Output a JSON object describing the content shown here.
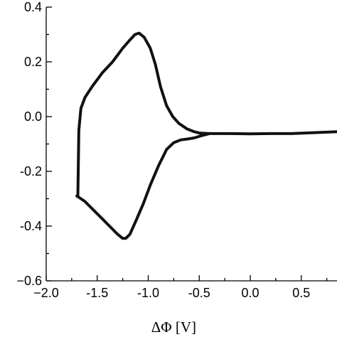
{
  "chart_data": {
    "type": "line",
    "title": "",
    "xlabel": "ΔΦ [V]",
    "ylabel": "",
    "xlim": [
      -2.0,
      0.85
    ],
    "ylim": [
      -0.6,
      0.4
    ],
    "x_ticks": [
      -2.0,
      -1.5,
      -1.0,
      -0.5,
      0.0,
      0.5
    ],
    "x_tick_labels": [
      "−2.0",
      "-1.5",
      "-1.0",
      "-0.5",
      "0.0",
      "0.5"
    ],
    "y_ticks": [
      0.4,
      0.2,
      0.0,
      -0.2,
      -0.4,
      -0.6
    ],
    "y_tick_labels": [
      "0.4",
      "0.2",
      "0.0",
      "-0.2",
      "-0.4",
      "−0.6"
    ],
    "grid": false,
    "series": [
      {
        "color": "#111111",
        "x": [
          -1.69,
          -1.68,
          -1.66,
          -1.62,
          -1.55,
          -1.45,
          -1.35,
          -1.25,
          -1.18,
          -1.13,
          -1.09,
          -1.04,
          -0.98,
          -0.93,
          -0.88,
          -0.82,
          -0.76,
          -0.7,
          -0.62,
          -0.55,
          -0.5,
          -0.4,
          -0.2,
          0.0,
          0.2,
          0.4,
          0.6,
          0.85,
          0.6,
          0.4,
          0.2,
          0.0,
          -0.2,
          -0.4,
          -0.48,
          -0.55,
          -0.62,
          -0.68,
          -0.75,
          -0.82,
          -0.9,
          -0.98,
          -1.05,
          -1.12,
          -1.18,
          -1.22,
          -1.25,
          -1.3,
          -1.38,
          -1.46,
          -1.54,
          -1.62,
          -1.7,
          -1.7,
          -1.69
        ],
        "y": [
          -0.29,
          -0.05,
          0.03,
          0.07,
          0.11,
          0.16,
          0.2,
          0.25,
          0.28,
          0.3,
          0.305,
          0.29,
          0.25,
          0.19,
          0.11,
          0.04,
          0.0,
          -0.025,
          -0.045,
          -0.055,
          -0.06,
          -0.062,
          -0.062,
          -0.063,
          -0.062,
          -0.062,
          -0.059,
          -0.055,
          -0.059,
          -0.062,
          -0.062,
          -0.063,
          -0.062,
          -0.062,
          -0.07,
          -0.078,
          -0.082,
          -0.085,
          -0.095,
          -0.12,
          -0.18,
          -0.25,
          -0.32,
          -0.38,
          -0.43,
          -0.445,
          -0.445,
          -0.43,
          -0.4,
          -0.37,
          -0.34,
          -0.31,
          -0.29,
          -0.29,
          -0.29
        ]
      }
    ]
  }
}
